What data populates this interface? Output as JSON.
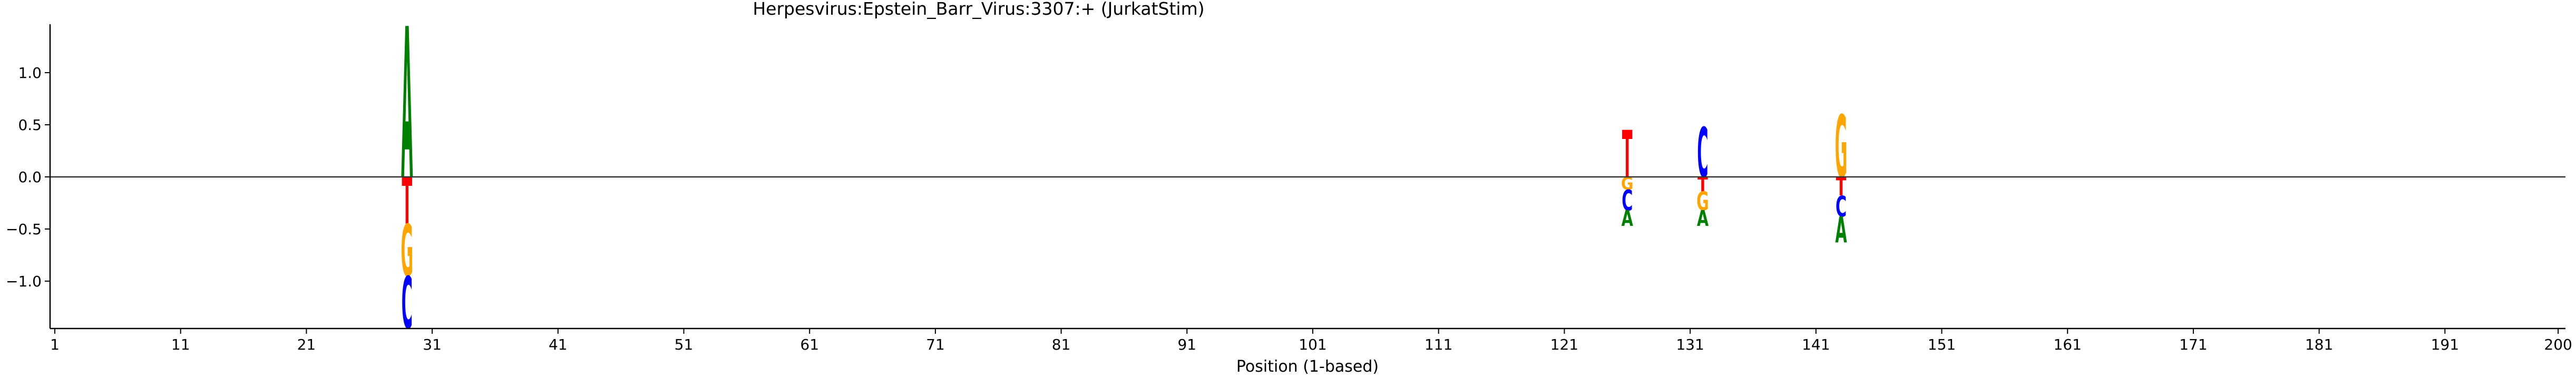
{
  "chart_data": {
    "type": "sequence-logo",
    "title": "Herpesvirus:Epstein_Barr_Virus:3307:+  (JurkatStim)",
    "xlabel": "Position (1-based)",
    "ylabel": "",
    "xlim": [
      1,
      200
    ],
    "ylim": [
      -1.45,
      1.45
    ],
    "x_ticks": [
      1,
      11,
      21,
      31,
      41,
      51,
      61,
      71,
      81,
      91,
      101,
      111,
      121,
      131,
      141,
      151,
      161,
      171,
      181,
      191,
      200
    ],
    "y_ticks": [
      -1.0,
      -0.5,
      0.0,
      0.5,
      1.0
    ],
    "y_tick_labels": [
      "−1.0",
      "−0.5",
      "0.0",
      "0.5",
      "1.0"
    ],
    "zero_line": true,
    "colors": {
      "A": "#008000",
      "C": "#0000ff",
      "G": "#ffa500",
      "T": "#ff0000"
    },
    "positions": [
      {
        "pos": 29,
        "letters": [
          {
            "base": "A",
            "value": 1.45
          },
          {
            "base": "T",
            "value": -0.45
          },
          {
            "base": "G",
            "value": -0.5
          },
          {
            "base": "C",
            "value": -0.5
          }
        ]
      },
      {
        "pos": 126,
        "letters": [
          {
            "base": "T",
            "value": 0.45
          },
          {
            "base": "G",
            "value": -0.12
          },
          {
            "base": "C",
            "value": -0.2
          },
          {
            "base": "A",
            "value": -0.15
          }
        ]
      },
      {
        "pos": 132,
        "letters": [
          {
            "base": "C",
            "value": 0.48
          },
          {
            "base": "T",
            "value": -0.14
          },
          {
            "base": "G",
            "value": -0.18
          },
          {
            "base": "A",
            "value": -0.15
          }
        ]
      },
      {
        "pos": 143,
        "letters": [
          {
            "base": "G",
            "value": 0.6
          },
          {
            "base": "T",
            "value": -0.18
          },
          {
            "base": "C",
            "value": -0.2
          },
          {
            "base": "A",
            "value": -0.25
          }
        ]
      }
    ]
  }
}
